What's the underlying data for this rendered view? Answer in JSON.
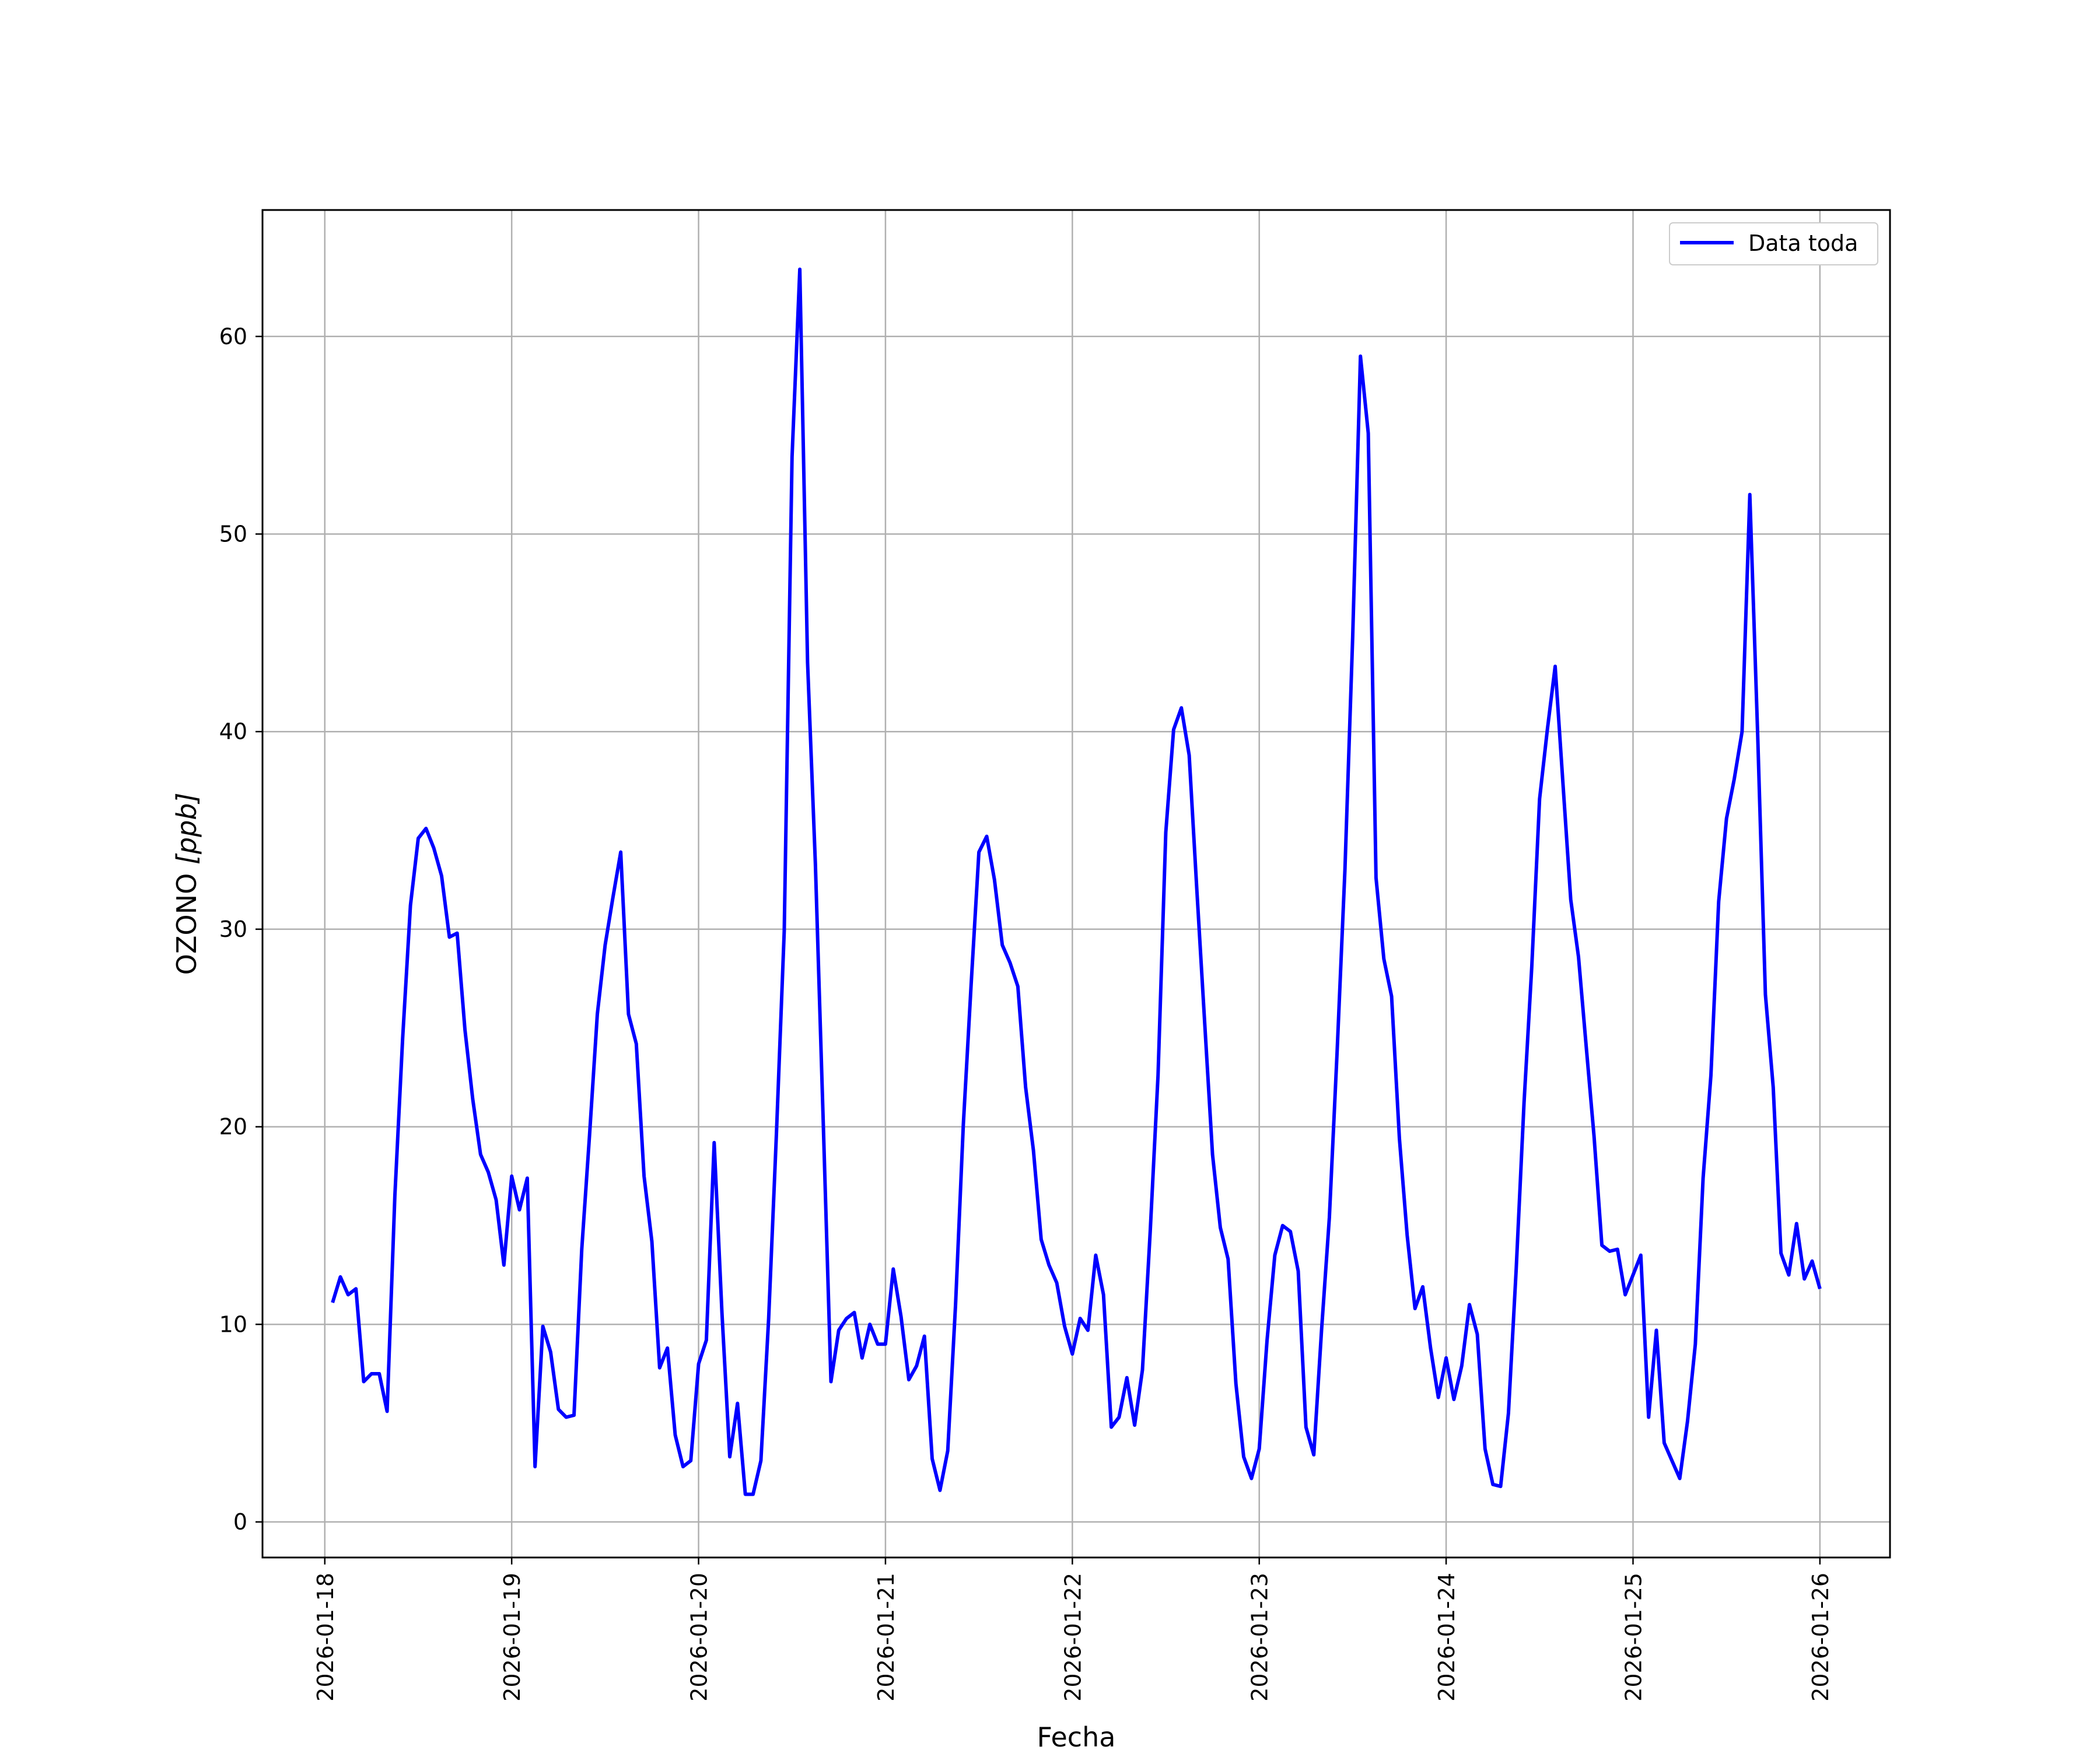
{
  "chart_data": {
    "type": "line",
    "xlabel": "Fecha",
    "ylabel": "OZONO [ppb]",
    "ylabel_parts": {
      "prefix": "OZONO ",
      "unit": "[ppb]"
    },
    "xlim": [
      "2026-01-17T16:00",
      "2026-01-26T09:00"
    ],
    "ylim": [
      -1.8,
      66.4
    ],
    "x_ticks": [
      "2026-01-18",
      "2026-01-19",
      "2026-01-20",
      "2026-01-21",
      "2026-01-22",
      "2026-01-23",
      "2026-01-24",
      "2026-01-25",
      "2026-01-26"
    ],
    "y_ticks": [
      0,
      10,
      20,
      30,
      40,
      50,
      60
    ],
    "grid": true,
    "legend": {
      "position": "top-right",
      "entries": [
        "Data toda"
      ]
    },
    "series": [
      {
        "name": "Data toda",
        "color": "#0000ff",
        "start": "2026-01-18T01:00",
        "interval_hours": 1,
        "values": [
          11.1,
          12.4,
          11.5,
          11.8,
          7.1,
          7.5,
          7.5,
          5.6,
          16.5,
          24.5,
          31.2,
          34.6,
          35.1,
          34.1,
          32.7,
          29.6,
          29.8,
          24.9,
          21.4,
          18.6,
          17.7,
          16.3,
          13.0,
          17.5,
          15.8,
          17.4,
          2.8,
          9.9,
          8.6,
          5.7,
          5.3,
          5.4,
          13.8,
          19.6,
          25.7,
          29.2,
          31.6,
          33.9,
          25.7,
          24.2,
          17.5,
          14.2,
          7.8,
          8.8,
          4.4,
          2.8,
          3.1,
          8.0,
          9.2,
          19.2,
          10.6,
          3.3,
          6.0,
          1.4,
          1.4,
          3.1,
          10.3,
          19.7,
          29.9,
          53.9,
          63.4,
          43.5,
          33.3,
          20.4,
          7.1,
          9.7,
          10.3,
          10.6,
          8.3,
          10.0,
          9.0,
          9.0,
          12.8,
          10.4,
          7.2,
          7.9,
          9.4,
          3.2,
          1.6,
          3.6,
          11.0,
          20.1,
          27.2,
          33.9,
          34.7,
          32.5,
          29.2,
          28.3,
          27.1,
          22.0,
          18.8,
          14.3,
          13.0,
          12.1,
          9.9,
          8.5,
          10.3,
          9.7,
          13.5,
          11.5,
          4.8,
          5.3,
          7.3,
          4.9,
          7.7,
          14.7,
          22.6,
          34.9,
          40.1,
          41.2,
          38.8,
          31.9,
          25.2,
          18.6,
          14.9,
          13.3,
          7.0,
          3.3,
          2.2,
          3.7,
          9.2,
          13.5,
          15.0,
          14.7,
          12.7,
          4.8,
          3.4,
          9.7,
          15.4,
          23.8,
          33.0,
          44.8,
          59.0,
          55.1,
          32.6,
          28.5,
          26.6,
          19.4,
          14.5,
          10.8,
          11.9,
          8.8,
          6.3,
          8.3,
          6.2,
          7.9,
          11.0,
          9.5,
          3.7,
          1.9,
          1.8,
          5.5,
          12.8,
          21.2,
          28.1,
          36.6,
          40.1,
          43.3,
          37.4,
          31.5,
          28.6,
          24.0,
          19.5,
          14.0,
          13.7,
          13.8,
          11.5,
          12.5,
          13.5,
          5.3,
          9.7,
          4.0,
          3.1,
          2.2,
          5.1,
          9.0,
          17.4,
          22.6,
          31.4,
          35.6,
          37.6,
          40.0,
          52.0,
          39.9,
          26.7,
          22.0,
          13.6,
          12.5,
          15.1,
          12.3,
          13.2,
          11.8
        ]
      }
    ]
  }
}
